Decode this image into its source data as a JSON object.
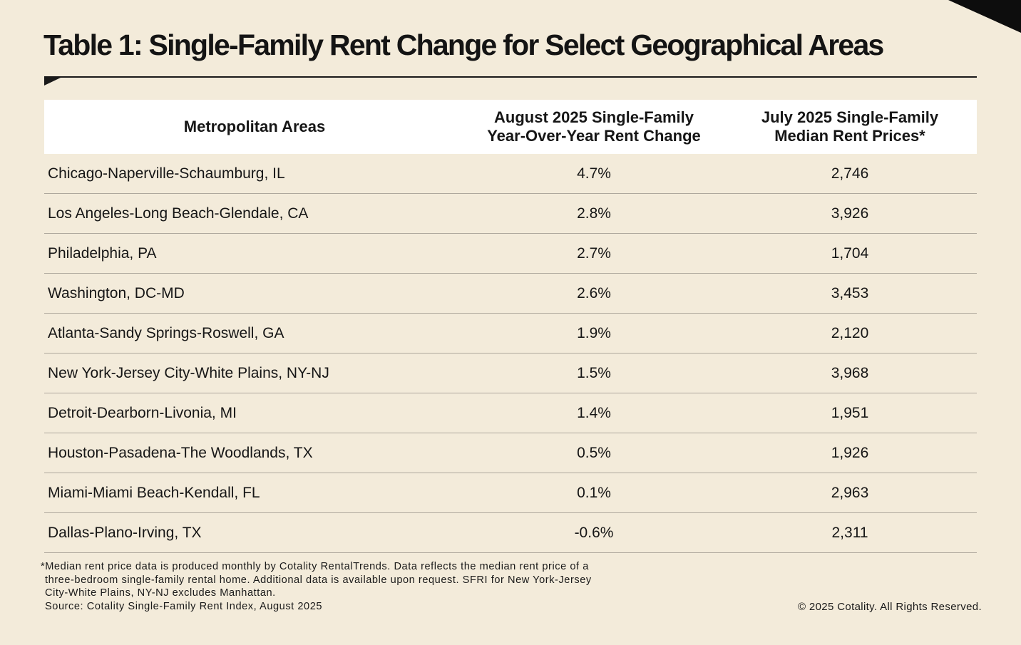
{
  "title": "Table 1: Single-Family Rent Change for Select Geographical Areas",
  "chart_data": {
    "type": "table",
    "title": "Table 1: Single-Family Rent Change for Select Geographical Areas",
    "columns": [
      "Metropolitan Areas",
      "August 2025 Single-Family Year-Over-Year Rent Change",
      "July 2025 Single-Family Median Rent Prices*"
    ],
    "column_header_lines": {
      "metro": [
        "Metropolitan Areas"
      ],
      "change": [
        "August 2025 Single-Family",
        "Year-Over-Year Rent Change"
      ],
      "median": [
        "July 2025 Single-Family",
        "Median Rent Prices*"
      ]
    },
    "rows": [
      {
        "metro": "Chicago-Naperville-Schaumburg, IL",
        "change": "4.7%",
        "median": "2,746"
      },
      {
        "metro": "Los Angeles-Long Beach-Glendale, CA",
        "change": "2.8%",
        "median": "3,926"
      },
      {
        "metro": "Philadelphia, PA",
        "change": "2.7%",
        "median": "1,704"
      },
      {
        "metro": "Washington, DC-MD",
        "change": "2.6%",
        "median": "3,453"
      },
      {
        "metro": "Atlanta-Sandy Springs-Roswell, GA",
        "change": "1.9%",
        "median": "2,120"
      },
      {
        "metro": "New York-Jersey City-White Plains, NY-NJ",
        "change": "1.5%",
        "median": "3,968"
      },
      {
        "metro": "Detroit-Dearborn-Livonia, MI",
        "change": "1.4%",
        "median": "1,951"
      },
      {
        "metro": "Houston-Pasadena-The Woodlands, TX",
        "change": "0.5%",
        "median": "1,926"
      },
      {
        "metro": "Miami-Miami Beach-Kendall, FL",
        "change": "0.1%",
        "median": "2,963"
      },
      {
        "metro": "Dallas-Plano-Irving, TX",
        "change": "-0.6%",
        "median": "2,311"
      }
    ]
  },
  "footnote": {
    "lines": [
      "*Median rent price data is produced monthly by Cotality RentalTrends. Data reflects the median rent price of a",
      "three-bedroom single-family rental home. Additional data is available upon request. SFRI for New York-Jersey",
      "City-White Plains, NY-NJ excludes Manhattan."
    ],
    "source": "Source: Cotality Single-Family Rent Index, August 2025"
  },
  "copyright": "© 2025 Cotality. All Rights Reserved.",
  "colors": {
    "background": "#f3ebda",
    "accent_black": "#0d0d0d",
    "header_background": "#ffffff",
    "row_divider": "#aea89d"
  }
}
